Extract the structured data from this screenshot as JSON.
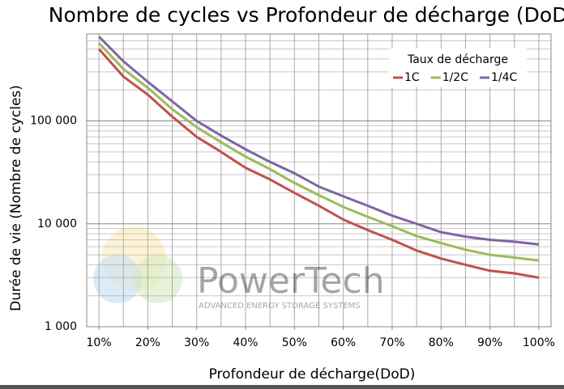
{
  "chart_data": {
    "type": "line",
    "title": "Nombre de cycles vs Profondeur de décharge (DoD)",
    "x_label": "Profondeur de décharge(DoD)",
    "y_label": "Durée de vie (Nombre de cycles)",
    "x": [
      10,
      15,
      20,
      25,
      30,
      35,
      40,
      45,
      50,
      55,
      60,
      65,
      70,
      75,
      80,
      85,
      90,
      95,
      100
    ],
    "series": [
      {
        "name": "1C",
        "color": "#c0504d",
        "values": [
          500000,
          270000,
          180000,
          110000,
          70000,
          50000,
          35000,
          27000,
          20000,
          15000,
          11000,
          8700,
          7000,
          5500,
          4600,
          4000,
          3500,
          3300,
          3000
        ]
      },
      {
        "name": "1/2C",
        "color": "#9bbb59",
        "values": [
          570000,
          320000,
          210000,
          130000,
          87000,
          62000,
          45000,
          34000,
          25000,
          19000,
          14600,
          11700,
          9500,
          7600,
          6500,
          5600,
          5000,
          4700,
          4400
        ]
      },
      {
        "name": "1/4C",
        "color": "#8064a2",
        "values": [
          660000,
          380000,
          240000,
          155000,
          100000,
          72000,
          53000,
          40000,
          31000,
          23000,
          18500,
          15000,
          12000,
          10000,
          8300,
          7500,
          7000,
          6700,
          6300
        ]
      }
    ],
    "xlim": [
      7.5,
      102.5
    ],
    "xticks": [
      {
        "value": 10,
        "label": "10%"
      },
      {
        "value": 20,
        "label": "20%"
      },
      {
        "value": 30,
        "label": "30%"
      },
      {
        "value": 40,
        "label": "40%"
      },
      {
        "value": 50,
        "label": "50%"
      },
      {
        "value": 60,
        "label": "60%"
      },
      {
        "value": 70,
        "label": "70%"
      },
      {
        "value": 80,
        "label": "80%"
      },
      {
        "value": 90,
        "label": "90%"
      },
      {
        "value": 100,
        "label": "100%"
      }
    ],
    "ylim": [
      1000,
      700000
    ],
    "yticks": [
      {
        "value": 1000,
        "label": "1 000"
      },
      {
        "value": 10000,
        "label": "10 000"
      },
      {
        "value": 100000,
        "label": "100 000"
      }
    ],
    "y_scale": "log",
    "grid": true,
    "legend_title": "Taux de décharge",
    "legend_position": "upper right",
    "watermark": {
      "brand": "PowerTech",
      "tagline": "ADVANCED ENERGY STORAGE SYSTEMS"
    }
  }
}
